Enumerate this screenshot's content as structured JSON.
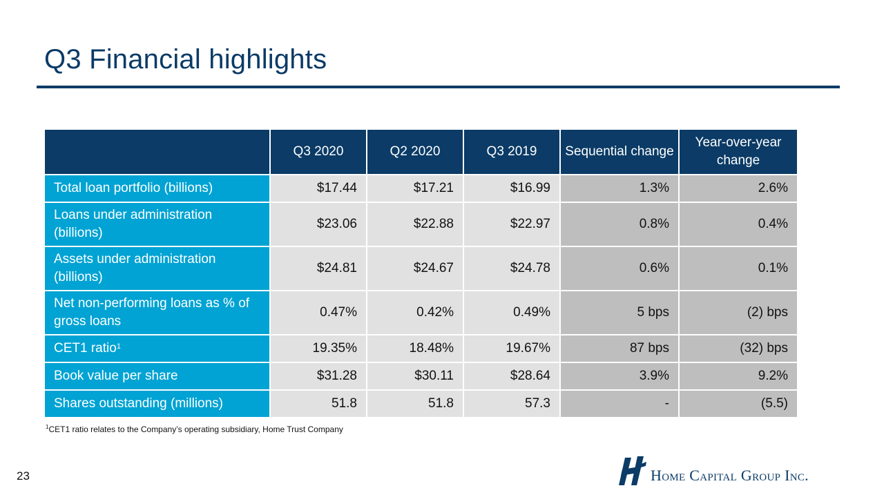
{
  "slide": {
    "title": "Q3 Financial highlights",
    "page_number": "23"
  },
  "table": {
    "headers": [
      "",
      "Q3 2020",
      "Q2 2020",
      "Q3 2019",
      "Sequential change",
      "Year-over-year change"
    ],
    "rows": [
      {
        "label": "Total loan portfolio (billions)",
        "label_sup": "",
        "values": [
          "$17.44",
          "$17.21",
          "$16.99",
          "1.3%",
          "2.6%"
        ]
      },
      {
        "label": "Loans under administration (billions)",
        "label_sup": "",
        "values": [
          "$23.06",
          "$22.88",
          "$22.97",
          "0.8%",
          "0.4%"
        ]
      },
      {
        "label": "Assets under administration (billions)",
        "label_sup": "",
        "values": [
          "$24.81",
          "$24.67",
          "$24.78",
          "0.6%",
          "0.1%"
        ]
      },
      {
        "label": "Net non-performing loans as % of gross loans",
        "label_sup": "",
        "values": [
          "0.47%",
          "0.42%",
          "0.49%",
          "5 bps",
          "(2) bps"
        ]
      },
      {
        "label": "CET1 ratio",
        "label_sup": "1",
        "values": [
          "19.35%",
          "18.48%",
          "19.67%",
          "87 bps",
          "(32) bps"
        ]
      },
      {
        "label": "Book value per share",
        "label_sup": "",
        "values": [
          "$31.28",
          "$30.11",
          "$28.64",
          "3.9%",
          "9.2%"
        ]
      },
      {
        "label": "Shares outstanding (millions)",
        "label_sup": "",
        "values": [
          "51.8",
          "51.8",
          "57.3",
          "-",
          "(5.5)"
        ]
      }
    ]
  },
  "footnote": {
    "marker": "1",
    "text": "CET1 ratio relates to the Company’s operating subsidiary, Home Trust Company"
  },
  "logo": {
    "text": "Home Capital Group Inc.",
    "icon": "home-capital-h-logo-icon"
  },
  "colors": {
    "navy": "#0b3b66",
    "cyan": "#00a3d3",
    "light_gray": "#e1e1e1",
    "dark_gray": "#bebebe"
  }
}
